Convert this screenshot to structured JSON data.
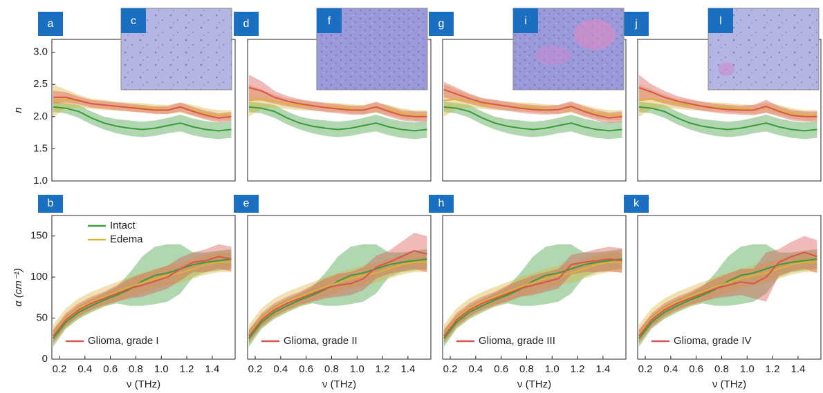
{
  "chart_data": [
    {
      "type": "line",
      "panel_label": "a",
      "ylabel": "n",
      "xlim": [
        0.14,
        1.58
      ],
      "ylim": [
        1.0,
        3.2
      ],
      "yticks": [
        {
          "value": 1.0,
          "label": "1.0"
        },
        1.5,
        {
          "value": 2.0,
          "label": "2.0"
        },
        2.5,
        {
          "value": 3.0,
          "label": "3.0"
        }
      ],
      "x": [
        0.15,
        0.25,
        0.35,
        0.45,
        0.55,
        0.65,
        0.75,
        0.85,
        0.95,
        1.05,
        1.15,
        1.25,
        1.35,
        1.45,
        1.55
      ],
      "series": [
        {
          "color": "#3a9a3a",
          "values": [
            2.15,
            2.13,
            2.08,
            1.98,
            1.9,
            1.85,
            1.82,
            1.8,
            1.82,
            1.86,
            1.9,
            1.84,
            1.8,
            1.78,
            1.8
          ],
          "err": [
            0.08,
            0.08,
            0.1,
            0.1,
            0.1,
            0.11,
            0.12,
            0.12,
            0.12,
            0.12,
            0.13,
            0.13,
            0.13,
            0.13,
            0.13
          ]
        },
        {
          "color": "#d9b43a",
          "values": [
            2.25,
            2.27,
            2.24,
            2.2,
            2.18,
            2.16,
            2.15,
            2.14,
            2.12,
            2.11,
            2.14,
            2.1,
            2.05,
            2.02,
            2.02
          ],
          "err": [
            0.25,
            0.15,
            0.1,
            0.08,
            0.08,
            0.07,
            0.07,
            0.07,
            0.07,
            0.07,
            0.08,
            0.08,
            0.08,
            0.08,
            0.08
          ]
        },
        {
          "color": "#d9534f",
          "values": [
            2.3,
            2.3,
            2.25,
            2.2,
            2.18,
            2.16,
            2.14,
            2.12,
            2.1,
            2.1,
            2.15,
            2.08,
            2.02,
            1.98,
            2.0
          ],
          "err": [
            0.1,
            0.08,
            0.06,
            0.06,
            0.06,
            0.06,
            0.06,
            0.06,
            0.06,
            0.06,
            0.07,
            0.07,
            0.07,
            0.07,
            0.07
          ]
        }
      ]
    },
    {
      "type": "line",
      "panel_label": "b",
      "ylabel": "α (cm⁻¹)",
      "xlabel": "ν (THz)",
      "xlim": [
        0.14,
        1.58
      ],
      "ylim": [
        0,
        175
      ],
      "yticks": [
        0,
        50,
        100,
        150
      ],
      "xticks": [
        0.2,
        0.4,
        0.6,
        0.8,
        {
          "value": 1.0,
          "label": "1.0"
        },
        1.2,
        1.4
      ],
      "x": [
        0.15,
        0.25,
        0.35,
        0.45,
        0.55,
        0.65,
        0.75,
        0.85,
        0.95,
        1.05,
        1.15,
        1.25,
        1.35,
        1.45,
        1.55
      ],
      "series": [
        {
          "name": "Intact",
          "color": "#3a9a3a",
          "values": [
            25,
            45,
            57,
            65,
            72,
            78,
            85,
            95,
            102,
            105,
            110,
            115,
            118,
            120,
            122
          ],
          "err": [
            10,
            8,
            8,
            8,
            8,
            10,
            20,
            30,
            35,
            35,
            30,
            15,
            12,
            12,
            12
          ]
        },
        {
          "name": "Edema",
          "color": "#d9b43a",
          "values": [
            30,
            50,
            62,
            70,
            76,
            82,
            88,
            93,
            98,
            102,
            105,
            110,
            115,
            118,
            118
          ],
          "err": [
            12,
            12,
            12,
            12,
            12,
            12,
            12,
            12,
            12,
            12,
            12,
            12,
            12,
            12,
            12
          ]
        },
        {
          "name": "Glioma, grade I",
          "color": "#d9534f",
          "values": [
            28,
            48,
            60,
            68,
            74,
            80,
            86,
            90,
            95,
            100,
            110,
            118,
            120,
            125,
            122
          ],
          "err": [
            8,
            8,
            8,
            8,
            8,
            10,
            12,
            14,
            14,
            14,
            14,
            12,
            14,
            15,
            15
          ]
        }
      ]
    },
    {
      "type": "line",
      "panel_label": "d",
      "xlim": [
        0.14,
        1.58
      ],
      "ylim": [
        1.0,
        3.2
      ],
      "x": [
        0.15,
        0.25,
        0.35,
        0.45,
        0.55,
        0.65,
        0.75,
        0.85,
        0.95,
        1.05,
        1.15,
        1.25,
        1.35,
        1.45,
        1.55
      ],
      "series": [
        {
          "color": "#3a9a3a",
          "values": [
            2.15,
            2.13,
            2.08,
            1.98,
            1.9,
            1.85,
            1.82,
            1.8,
            1.82,
            1.86,
            1.9,
            1.84,
            1.8,
            1.78,
            1.8
          ],
          "err": [
            0.08,
            0.08,
            0.1,
            0.1,
            0.1,
            0.11,
            0.12,
            0.12,
            0.12,
            0.12,
            0.13,
            0.13,
            0.13,
            0.13,
            0.13
          ]
        },
        {
          "color": "#d9b43a",
          "values": [
            2.25,
            2.27,
            2.24,
            2.2,
            2.18,
            2.16,
            2.15,
            2.14,
            2.12,
            2.11,
            2.14,
            2.1,
            2.05,
            2.02,
            2.02
          ],
          "err": [
            0.25,
            0.15,
            0.1,
            0.08,
            0.08,
            0.07,
            0.07,
            0.07,
            0.07,
            0.07,
            0.08,
            0.08,
            0.08,
            0.08,
            0.08
          ]
        },
        {
          "color": "#d9534f",
          "values": [
            2.45,
            2.4,
            2.3,
            2.24,
            2.2,
            2.17,
            2.14,
            2.12,
            2.1,
            2.1,
            2.15,
            2.08,
            2.02,
            2.0,
            2.0
          ],
          "err": [
            0.2,
            0.15,
            0.1,
            0.08,
            0.07,
            0.07,
            0.07,
            0.07,
            0.07,
            0.07,
            0.08,
            0.08,
            0.08,
            0.08,
            0.08
          ]
        }
      ]
    },
    {
      "type": "line",
      "panel_label": "e",
      "xlabel": "ν (THz)",
      "xlim": [
        0.14,
        1.58
      ],
      "ylim": [
        0,
        175
      ],
      "xticks": [
        0.2,
        0.4,
        0.6,
        0.8,
        {
          "value": 1.0,
          "label": "1.0"
        },
        1.2,
        1.4
      ],
      "x": [
        0.15,
        0.25,
        0.35,
        0.45,
        0.55,
        0.65,
        0.75,
        0.85,
        0.95,
        1.05,
        1.15,
        1.25,
        1.35,
        1.45,
        1.55
      ],
      "series": [
        {
          "color": "#3a9a3a",
          "values": [
            25,
            45,
            57,
            65,
            72,
            78,
            85,
            95,
            102,
            105,
            110,
            115,
            118,
            120,
            122
          ],
          "err": [
            10,
            8,
            8,
            8,
            8,
            10,
            20,
            30,
            35,
            35,
            30,
            15,
            12,
            12,
            12
          ]
        },
        {
          "color": "#d9b43a",
          "values": [
            30,
            50,
            62,
            70,
            76,
            82,
            88,
            93,
            98,
            102,
            105,
            110,
            115,
            118,
            118
          ],
          "err": [
            12,
            12,
            12,
            12,
            12,
            12,
            12,
            12,
            12,
            12,
            12,
            12,
            12,
            12,
            12
          ]
        },
        {
          "name": "Glioma, grade II",
          "color": "#d9534f",
          "values": [
            28,
            48,
            60,
            68,
            74,
            80,
            86,
            90,
            92,
            98,
            112,
            118,
            125,
            132,
            128
          ],
          "err": [
            8,
            8,
            8,
            8,
            8,
            10,
            12,
            14,
            14,
            14,
            14,
            14,
            18,
            22,
            22
          ]
        }
      ]
    },
    {
      "type": "line",
      "panel_label": "g",
      "xlim": [
        0.14,
        1.58
      ],
      "ylim": [
        1.0,
        3.2
      ],
      "x": [
        0.15,
        0.25,
        0.35,
        0.45,
        0.55,
        0.65,
        0.75,
        0.85,
        0.95,
        1.05,
        1.15,
        1.25,
        1.35,
        1.45,
        1.55
      ],
      "series": [
        {
          "color": "#3a9a3a",
          "values": [
            2.15,
            2.13,
            2.08,
            1.98,
            1.9,
            1.85,
            1.82,
            1.8,
            1.82,
            1.86,
            1.9,
            1.84,
            1.8,
            1.78,
            1.8
          ],
          "err": [
            0.08,
            0.08,
            0.1,
            0.1,
            0.1,
            0.11,
            0.12,
            0.12,
            0.12,
            0.12,
            0.13,
            0.13,
            0.13,
            0.13,
            0.13
          ]
        },
        {
          "color": "#d9b43a",
          "values": [
            2.25,
            2.27,
            2.24,
            2.2,
            2.18,
            2.16,
            2.15,
            2.14,
            2.12,
            2.11,
            2.14,
            2.1,
            2.05,
            2.02,
            2.02
          ],
          "err": [
            0.25,
            0.15,
            0.1,
            0.08,
            0.08,
            0.07,
            0.07,
            0.07,
            0.07,
            0.07,
            0.08,
            0.08,
            0.08,
            0.08,
            0.08
          ]
        },
        {
          "color": "#d9534f",
          "values": [
            2.42,
            2.35,
            2.28,
            2.22,
            2.19,
            2.16,
            2.13,
            2.11,
            2.1,
            2.11,
            2.16,
            2.08,
            2.02,
            1.98,
            2.0
          ],
          "err": [
            0.12,
            0.1,
            0.08,
            0.07,
            0.07,
            0.07,
            0.07,
            0.07,
            0.07,
            0.07,
            0.08,
            0.08,
            0.08,
            0.08,
            0.08
          ]
        }
      ]
    },
    {
      "type": "line",
      "panel_label": "h",
      "xlabel": "ν (THz)",
      "xlim": [
        0.14,
        1.58
      ],
      "ylim": [
        0,
        175
      ],
      "xticks": [
        0.2,
        0.4,
        0.6,
        0.8,
        {
          "value": 1.0,
          "label": "1.0"
        },
        1.2,
        1.4
      ],
      "x": [
        0.15,
        0.25,
        0.35,
        0.45,
        0.55,
        0.65,
        0.75,
        0.85,
        0.95,
        1.05,
        1.15,
        1.25,
        1.35,
        1.45,
        1.55
      ],
      "series": [
        {
          "color": "#3a9a3a",
          "values": [
            25,
            45,
            57,
            65,
            72,
            78,
            85,
            95,
            102,
            105,
            110,
            115,
            118,
            120,
            122
          ],
          "err": [
            10,
            8,
            8,
            8,
            8,
            10,
            20,
            30,
            35,
            35,
            30,
            15,
            12,
            12,
            12
          ]
        },
        {
          "color": "#d9b43a",
          "values": [
            30,
            50,
            62,
            70,
            76,
            82,
            88,
            93,
            98,
            102,
            105,
            110,
            115,
            118,
            118
          ],
          "err": [
            12,
            12,
            12,
            12,
            12,
            12,
            12,
            12,
            12,
            12,
            12,
            12,
            12,
            12,
            12
          ]
        },
        {
          "name": "Glioma, grade III",
          "color": "#d9534f",
          "values": [
            28,
            48,
            60,
            68,
            74,
            80,
            86,
            90,
            94,
            98,
            115,
            118,
            120,
            122,
            120
          ],
          "err": [
            8,
            8,
            8,
            8,
            8,
            10,
            10,
            12,
            12,
            12,
            12,
            12,
            14,
            15,
            15
          ]
        }
      ]
    },
    {
      "type": "line",
      "panel_label": "j",
      "xlim": [
        0.14,
        1.58
      ],
      "ylim": [
        1.0,
        3.2
      ],
      "x": [
        0.15,
        0.25,
        0.35,
        0.45,
        0.55,
        0.65,
        0.75,
        0.85,
        0.95,
        1.05,
        1.15,
        1.25,
        1.35,
        1.45,
        1.55
      ],
      "series": [
        {
          "color": "#3a9a3a",
          "values": [
            2.15,
            2.13,
            2.08,
            1.98,
            1.9,
            1.85,
            1.82,
            1.8,
            1.82,
            1.86,
            1.9,
            1.84,
            1.8,
            1.78,
            1.8
          ],
          "err": [
            0.08,
            0.08,
            0.1,
            0.1,
            0.1,
            0.11,
            0.12,
            0.12,
            0.12,
            0.12,
            0.13,
            0.13,
            0.13,
            0.13,
            0.13
          ]
        },
        {
          "color": "#d9b43a",
          "values": [
            2.25,
            2.27,
            2.24,
            2.2,
            2.18,
            2.16,
            2.15,
            2.14,
            2.12,
            2.11,
            2.14,
            2.1,
            2.05,
            2.02,
            2.02
          ],
          "err": [
            0.25,
            0.15,
            0.1,
            0.08,
            0.08,
            0.07,
            0.07,
            0.07,
            0.07,
            0.07,
            0.08,
            0.08,
            0.08,
            0.08,
            0.08
          ]
        },
        {
          "color": "#d9534f",
          "values": [
            2.45,
            2.38,
            2.3,
            2.24,
            2.2,
            2.16,
            2.13,
            2.11,
            2.1,
            2.1,
            2.16,
            2.08,
            2.02,
            2.0,
            2.0
          ],
          "err": [
            0.2,
            0.12,
            0.1,
            0.08,
            0.07,
            0.07,
            0.07,
            0.07,
            0.07,
            0.08,
            0.1,
            0.08,
            0.08,
            0.08,
            0.08
          ]
        }
      ]
    },
    {
      "type": "line",
      "panel_label": "k",
      "xlabel": "ν (THz)",
      "xlim": [
        0.14,
        1.58
      ],
      "ylim": [
        0,
        175
      ],
      "xticks": [
        0.2,
        0.4,
        0.6,
        0.8,
        {
          "value": 1.0,
          "label": "1.0"
        },
        1.2,
        1.4
      ],
      "x": [
        0.15,
        0.25,
        0.35,
        0.45,
        0.55,
        0.65,
        0.75,
        0.85,
        0.95,
        1.05,
        1.15,
        1.25,
        1.35,
        1.45,
        1.55
      ],
      "series": [
        {
          "color": "#3a9a3a",
          "values": [
            25,
            45,
            57,
            65,
            72,
            78,
            85,
            95,
            102,
            105,
            110,
            115,
            118,
            120,
            122
          ],
          "err": [
            10,
            8,
            8,
            8,
            8,
            10,
            20,
            30,
            35,
            35,
            30,
            15,
            12,
            12,
            12
          ]
        },
        {
          "color": "#d9b43a",
          "values": [
            30,
            50,
            62,
            70,
            76,
            82,
            88,
            93,
            98,
            102,
            105,
            110,
            115,
            118,
            118
          ],
          "err": [
            12,
            12,
            12,
            12,
            12,
            12,
            12,
            12,
            12,
            12,
            12,
            12,
            12,
            12,
            12
          ]
        },
        {
          "name": "Glioma, grade IV",
          "color": "#d9534f",
          "values": [
            28,
            48,
            60,
            68,
            74,
            80,
            86,
            90,
            94,
            92,
            100,
            118,
            125,
            130,
            125
          ],
          "err": [
            8,
            8,
            8,
            8,
            8,
            10,
            12,
            14,
            16,
            18,
            30,
            16,
            18,
            20,
            20
          ]
        }
      ]
    }
  ],
  "insets": [
    {
      "label": "c"
    },
    {
      "label": "f"
    },
    {
      "label": "i"
    },
    {
      "label": "l"
    }
  ]
}
